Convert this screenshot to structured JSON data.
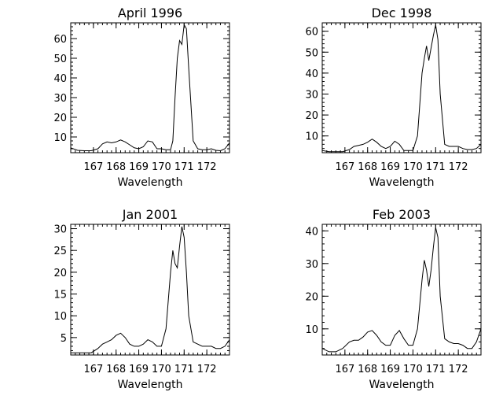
{
  "chart_data": [
    {
      "type": "line",
      "title": "April 1996",
      "xlabel": "Wavelength",
      "ylabel": "",
      "xticks": [
        "167",
        "168",
        "169",
        "170",
        "171",
        "172"
      ],
      "yticks": [
        10,
        20,
        30,
        40,
        50,
        60
      ],
      "xlim": [
        166,
        173
      ],
      "ylim": [
        2,
        68
      ],
      "series": [
        {
          "x": [
            166.0,
            166.3,
            166.6,
            166.9,
            167.2,
            167.4,
            167.6,
            167.8,
            168.0,
            168.2,
            168.4,
            168.6,
            168.8,
            169.0,
            169.2,
            169.4,
            169.6,
            169.8,
            170.0,
            170.2,
            170.4,
            170.5,
            170.6,
            170.7,
            170.8,
            170.9,
            171.0,
            171.1,
            171.2,
            171.4,
            171.6,
            171.8,
            172.0,
            172.2,
            172.4,
            172.6,
            172.8,
            173.0
          ],
          "y": [
            4.5,
            3.2,
            3.0,
            3.0,
            4.0,
            6.5,
            7.5,
            7.0,
            7.5,
            8.5,
            7.5,
            6.0,
            4.5,
            4.0,
            5.0,
            8.0,
            7.5,
            4.0,
            4.0,
            3.5,
            3.5,
            8.0,
            30.0,
            50.0,
            59.0,
            57.0,
            67.0,
            65.0,
            45.0,
            8.0,
            4.0,
            3.5,
            3.5,
            4.0,
            3.2,
            3.0,
            4.0,
            7.0
          ]
        }
      ]
    },
    {
      "type": "line",
      "title": "Dec 1998",
      "xlabel": "Wavelength",
      "ylabel": "",
      "xticks": [
        "167",
        "168",
        "169",
        "170",
        "171",
        "172"
      ],
      "yticks": [
        10,
        20,
        30,
        40,
        50,
        60
      ],
      "xlim": [
        166,
        173
      ],
      "ylim": [
        2,
        64
      ],
      "series": [
        {
          "x": [
            166.0,
            166.3,
            166.6,
            166.9,
            167.2,
            167.4,
            167.6,
            167.8,
            168.0,
            168.2,
            168.4,
            168.6,
            168.8,
            169.0,
            169.2,
            169.4,
            169.6,
            169.8,
            170.0,
            170.2,
            170.4,
            170.5,
            170.6,
            170.7,
            170.8,
            170.9,
            171.0,
            171.1,
            171.2,
            171.4,
            171.6,
            171.8,
            172.0,
            172.2,
            172.4,
            172.6,
            172.8,
            173.0
          ],
          "y": [
            3.0,
            2.5,
            2.5,
            2.5,
            3.5,
            5.0,
            5.5,
            6.0,
            7.0,
            8.5,
            7.0,
            5.0,
            4.0,
            5.0,
            7.5,
            6.0,
            3.0,
            3.0,
            3.0,
            10.0,
            40.0,
            47.0,
            53.0,
            46.0,
            52.0,
            58.0,
            63.0,
            56.0,
            30.0,
            6.0,
            5.0,
            5.0,
            5.0,
            4.0,
            3.5,
            3.5,
            4.0,
            6.0
          ]
        }
      ]
    },
    {
      "type": "line",
      "title": "Jan 2001",
      "xlabel": "Wavelength",
      "ylabel": "",
      "xticks": [
        "167",
        "168",
        "169",
        "170",
        "171",
        "172"
      ],
      "yticks": [
        5,
        10,
        15,
        20,
        25,
        30
      ],
      "xlim": [
        166,
        173
      ],
      "ylim": [
        1,
        31
      ],
      "series": [
        {
          "x": [
            166.0,
            166.3,
            166.6,
            166.9,
            167.2,
            167.4,
            167.6,
            167.8,
            168.0,
            168.2,
            168.4,
            168.6,
            168.8,
            169.0,
            169.2,
            169.4,
            169.6,
            169.8,
            170.0,
            170.2,
            170.4,
            170.5,
            170.6,
            170.7,
            170.8,
            170.9,
            171.0,
            171.1,
            171.2,
            171.4,
            171.6,
            171.8,
            172.0,
            172.2,
            172.4,
            172.6,
            172.8,
            173.0
          ],
          "y": [
            1.5,
            1.5,
            1.5,
            1.5,
            2.5,
            3.5,
            4.0,
            4.5,
            5.5,
            6.0,
            5.0,
            3.5,
            3.0,
            3.0,
            3.5,
            4.5,
            4.0,
            3.0,
            3.0,
            7.0,
            20.0,
            25.0,
            22.0,
            21.0,
            26.0,
            30.5,
            28.0,
            20.0,
            10.0,
            4.0,
            3.5,
            3.0,
            3.0,
            3.0,
            2.5,
            2.5,
            3.0,
            4.5
          ]
        }
      ]
    },
    {
      "type": "line",
      "title": "Feb 2003",
      "xlabel": "Wavelength",
      "ylabel": "",
      "xticks": [
        "167",
        "168",
        "169",
        "170",
        "171",
        "172"
      ],
      "yticks": [
        10,
        20,
        30,
        40
      ],
      "xlim": [
        166,
        173
      ],
      "ylim": [
        2,
        42
      ],
      "series": [
        {
          "x": [
            166.0,
            166.3,
            166.6,
            166.9,
            167.2,
            167.4,
            167.6,
            167.8,
            168.0,
            168.2,
            168.4,
            168.6,
            168.8,
            169.0,
            169.2,
            169.4,
            169.6,
            169.8,
            170.0,
            170.2,
            170.4,
            170.5,
            170.6,
            170.7,
            170.8,
            170.9,
            171.0,
            171.1,
            171.2,
            171.4,
            171.6,
            171.8,
            172.0,
            172.2,
            172.4,
            172.6,
            172.8,
            173.0
          ],
          "y": [
            4.0,
            3.0,
            3.0,
            4.0,
            6.0,
            6.5,
            6.5,
            7.5,
            9.0,
            9.5,
            8.0,
            6.0,
            5.0,
            5.0,
            8.0,
            9.5,
            7.0,
            5.0,
            5.0,
            10.0,
            25.0,
            31.0,
            28.0,
            23.0,
            28.0,
            35.0,
            41.0,
            38.0,
            20.0,
            7.0,
            6.0,
            5.5,
            5.5,
            5.0,
            4.0,
            4.0,
            6.0,
            10.0
          ]
        }
      ]
    }
  ]
}
